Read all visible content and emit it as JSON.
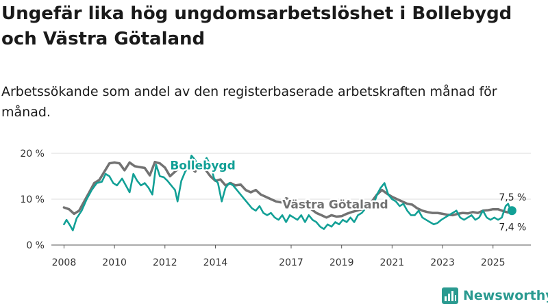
{
  "title": "Ungefär lika hög ungdomsarbetslöshet i Bollebygd och Västra Götaland",
  "subtitle": "Arbetssökande som andel av den registerbaserade arbetskraften månad för månad.",
  "brand": {
    "name": "Newsworthy",
    "color": "#2a9a90",
    "icon": "bar-chart-icon"
  },
  "chart_data": {
    "type": "line",
    "ylim": [
      0,
      20
    ],
    "yticks": [
      {
        "value": 0,
        "label": "0 %"
      },
      {
        "value": 10,
        "label": "10 %"
      },
      {
        "value": 20,
        "label": "20 %"
      }
    ],
    "xlim": [
      2007.5,
      2026.5
    ],
    "xticks": [
      {
        "value": 2008,
        "label": "2008"
      },
      {
        "value": 2010,
        "label": "2010"
      },
      {
        "value": 2012,
        "label": "2012"
      },
      {
        "value": 2014,
        "label": "2014"
      },
      {
        "value": 2017,
        "label": "2017"
      },
      {
        "value": 2019,
        "label": "2019"
      },
      {
        "value": 2021,
        "label": "2021"
      },
      {
        "value": 2023,
        "label": "2023"
      },
      {
        "value": 2025,
        "label": "2025"
      }
    ],
    "grid": true,
    "series": [
      {
        "name": "Västra Götaland",
        "color": "#727272",
        "end_label": "7,4 %",
        "points": [
          [
            2008.0,
            8.2
          ],
          [
            2008.2,
            7.8
          ],
          [
            2008.4,
            6.8
          ],
          [
            2008.6,
            7.5
          ],
          [
            2008.8,
            9.5
          ],
          [
            2009.0,
            11.5
          ],
          [
            2009.2,
            13.5
          ],
          [
            2009.4,
            14.2
          ],
          [
            2009.6,
            16.0
          ],
          [
            2009.8,
            17.8
          ],
          [
            2010.0,
            18.0
          ],
          [
            2010.2,
            17.8
          ],
          [
            2010.4,
            16.3
          ],
          [
            2010.6,
            18.0
          ],
          [
            2010.8,
            17.2
          ],
          [
            2011.0,
            17.0
          ],
          [
            2011.2,
            16.8
          ],
          [
            2011.4,
            15.2
          ],
          [
            2011.6,
            18.1
          ],
          [
            2011.8,
            17.8
          ],
          [
            2012.0,
            16.9
          ],
          [
            2012.2,
            15.0
          ],
          [
            2012.4,
            16.0
          ],
          [
            2012.6,
            17.0
          ],
          [
            2012.8,
            17.2
          ],
          [
            2013.0,
            17.0
          ],
          [
            2013.2,
            16.0
          ],
          [
            2013.4,
            18.0
          ],
          [
            2013.6,
            16.5
          ],
          [
            2013.8,
            15.0
          ],
          [
            2014.0,
            14.0
          ],
          [
            2014.2,
            14.3
          ],
          [
            2014.4,
            13.0
          ],
          [
            2014.6,
            13.5
          ],
          [
            2014.8,
            13.0
          ],
          [
            2015.0,
            13.2
          ],
          [
            2015.2,
            12.0
          ],
          [
            2015.4,
            11.5
          ],
          [
            2015.6,
            12.0
          ],
          [
            2015.8,
            11.0
          ],
          [
            2016.0,
            10.5
          ],
          [
            2016.2,
            10.0
          ],
          [
            2016.4,
            9.5
          ],
          [
            2016.6,
            9.3
          ],
          [
            2016.8,
            10.2
          ],
          [
            2017.0,
            9.8
          ],
          [
            2017.2,
            8.5
          ],
          [
            2017.4,
            8.0
          ],
          [
            2017.6,
            8.5
          ],
          [
            2017.8,
            7.8
          ],
          [
            2018.0,
            7.0
          ],
          [
            2018.2,
            6.5
          ],
          [
            2018.4,
            6.0
          ],
          [
            2018.6,
            6.5
          ],
          [
            2018.8,
            6.2
          ],
          [
            2019.0,
            6.3
          ],
          [
            2019.2,
            6.8
          ],
          [
            2019.4,
            7.2
          ],
          [
            2019.6,
            7.5
          ],
          [
            2019.8,
            7.8
          ],
          [
            2020.0,
            8.0
          ],
          [
            2020.2,
            9.5
          ],
          [
            2020.4,
            11.0
          ],
          [
            2020.6,
            12.0
          ],
          [
            2020.8,
            11.2
          ],
          [
            2021.0,
            10.5
          ],
          [
            2021.2,
            10.0
          ],
          [
            2021.4,
            9.5
          ],
          [
            2021.6,
            9.0
          ],
          [
            2021.8,
            8.8
          ],
          [
            2022.0,
            8.0
          ],
          [
            2022.2,
            7.5
          ],
          [
            2022.4,
            7.2
          ],
          [
            2022.6,
            7.0
          ],
          [
            2022.8,
            7.0
          ],
          [
            2023.0,
            6.8
          ],
          [
            2023.2,
            6.6
          ],
          [
            2023.4,
            6.5
          ],
          [
            2023.6,
            6.8
          ],
          [
            2023.8,
            7.0
          ],
          [
            2024.0,
            6.9
          ],
          [
            2024.2,
            7.2
          ],
          [
            2024.4,
            7.0
          ],
          [
            2024.6,
            7.5
          ],
          [
            2024.8,
            7.6
          ],
          [
            2025.0,
            7.8
          ],
          [
            2025.2,
            7.8
          ],
          [
            2025.4,
            7.4
          ],
          [
            2025.6,
            7.1
          ],
          [
            2025.75,
            7.4
          ]
        ]
      },
      {
        "name": "Bollebygd",
        "color": "#12a096",
        "end_label": "7,5 %",
        "points": [
          [
            2008.0,
            4.5
          ],
          [
            2008.1,
            5.5
          ],
          [
            2008.25,
            4.2
          ],
          [
            2008.35,
            3.2
          ],
          [
            2008.5,
            5.8
          ],
          [
            2008.7,
            7.5
          ],
          [
            2008.9,
            10.0
          ],
          [
            2009.1,
            12.0
          ],
          [
            2009.3,
            13.5
          ],
          [
            2009.5,
            13.8
          ],
          [
            2009.65,
            15.5
          ],
          [
            2009.8,
            15.0
          ],
          [
            2009.95,
            13.5
          ],
          [
            2010.1,
            13.0
          ],
          [
            2010.3,
            14.5
          ],
          [
            2010.45,
            13.0
          ],
          [
            2010.6,
            11.5
          ],
          [
            2010.75,
            15.5
          ],
          [
            2010.9,
            14.0
          ],
          [
            2011.05,
            13.0
          ],
          [
            2011.2,
            13.5
          ],
          [
            2011.35,
            12.5
          ],
          [
            2011.5,
            11.0
          ],
          [
            2011.65,
            17.5
          ],
          [
            2011.8,
            15.0
          ],
          [
            2011.95,
            14.8
          ],
          [
            2012.1,
            14.0
          ],
          [
            2012.25,
            13.0
          ],
          [
            2012.4,
            12.0
          ],
          [
            2012.5,
            9.5
          ],
          [
            2012.65,
            14.0
          ],
          [
            2012.8,
            16.0
          ],
          [
            2012.95,
            17.0
          ],
          [
            2013.05,
            19.5
          ],
          [
            2013.2,
            18.5
          ],
          [
            2013.35,
            17.0
          ],
          [
            2013.5,
            17.5
          ],
          [
            2013.65,
            19.0
          ],
          [
            2013.8,
            17.5
          ],
          [
            2013.95,
            14.5
          ],
          [
            2014.1,
            13.5
          ],
          [
            2014.25,
            9.5
          ],
          [
            2014.4,
            12.5
          ],
          [
            2014.55,
            13.5
          ],
          [
            2014.7,
            13.0
          ],
          [
            2014.85,
            12.0
          ],
          [
            2015.0,
            11.0
          ],
          [
            2015.15,
            10.0
          ],
          [
            2015.3,
            9.0
          ],
          [
            2015.45,
            8.0
          ],
          [
            2015.6,
            7.5
          ],
          [
            2015.75,
            8.5
          ],
          [
            2015.9,
            7.0
          ],
          [
            2016.05,
            6.5
          ],
          [
            2016.2,
            7.0
          ],
          [
            2016.35,
            6.0
          ],
          [
            2016.5,
            5.5
          ],
          [
            2016.65,
            6.5
          ],
          [
            2016.8,
            5.0
          ],
          [
            2016.95,
            6.5
          ],
          [
            2017.1,
            6.0
          ],
          [
            2017.25,
            5.5
          ],
          [
            2017.4,
            6.5
          ],
          [
            2017.55,
            5.0
          ],
          [
            2017.7,
            6.5
          ],
          [
            2017.85,
            5.5
          ],
          [
            2018.0,
            5.0
          ],
          [
            2018.15,
            4.0
          ],
          [
            2018.3,
            3.5
          ],
          [
            2018.45,
            4.5
          ],
          [
            2018.6,
            4.0
          ],
          [
            2018.75,
            5.0
          ],
          [
            2018.9,
            4.5
          ],
          [
            2019.05,
            5.5
          ],
          [
            2019.2,
            5.0
          ],
          [
            2019.35,
            6.0
          ],
          [
            2019.5,
            5.0
          ],
          [
            2019.65,
            6.5
          ],
          [
            2019.8,
            7.0
          ],
          [
            2019.95,
            8.0
          ],
          [
            2020.1,
            9.5
          ],
          [
            2020.25,
            8.5
          ],
          [
            2020.4,
            11.0
          ],
          [
            2020.55,
            12.5
          ],
          [
            2020.7,
            13.5
          ],
          [
            2020.85,
            11.0
          ],
          [
            2021.0,
            10.0
          ],
          [
            2021.15,
            9.5
          ],
          [
            2021.3,
            8.5
          ],
          [
            2021.45,
            9.0
          ],
          [
            2021.6,
            7.5
          ],
          [
            2021.75,
            6.5
          ],
          [
            2021.9,
            6.5
          ],
          [
            2022.05,
            7.5
          ],
          [
            2022.2,
            6.0
          ],
          [
            2022.35,
            5.5
          ],
          [
            2022.5,
            5.0
          ],
          [
            2022.65,
            4.5
          ],
          [
            2022.8,
            4.8
          ],
          [
            2022.95,
            5.5
          ],
          [
            2023.1,
            6.0
          ],
          [
            2023.25,
            6.5
          ],
          [
            2023.4,
            7.0
          ],
          [
            2023.55,
            7.5
          ],
          [
            2023.7,
            6.0
          ],
          [
            2023.85,
            5.5
          ],
          [
            2024.0,
            6.0
          ],
          [
            2024.15,
            6.5
          ],
          [
            2024.3,
            5.5
          ],
          [
            2024.45,
            6.0
          ],
          [
            2024.6,
            7.5
          ],
          [
            2024.75,
            6.0
          ],
          [
            2024.9,
            5.5
          ],
          [
            2025.05,
            6.0
          ],
          [
            2025.2,
            5.5
          ],
          [
            2025.35,
            6.0
          ],
          [
            2025.5,
            8.5
          ],
          [
            2025.6,
            9.0
          ],
          [
            2025.7,
            7.5
          ],
          [
            2025.75,
            7.5
          ]
        ]
      }
    ],
    "annotations": [
      {
        "series": "Bollebygd",
        "text": "Bollebygd",
        "at": [
          2013.5,
          16.5
        ]
      },
      {
        "series": "Västra Götaland",
        "text": "Västra Götaland",
        "at": [
          2018.75,
          8.0
        ]
      }
    ]
  }
}
